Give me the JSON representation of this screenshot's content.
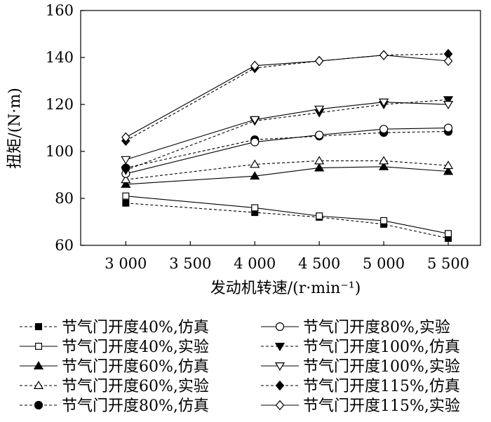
{
  "chart_data": {
    "type": "line",
    "title": "",
    "xlabel": "发动机转速/(r·min⁻¹)",
    "ylabel": "扭矩/(N·m)",
    "x": [
      3000,
      4000,
      4500,
      5000,
      5500
    ],
    "x_tick_labels": [
      "3 000",
      "3 500",
      "4 000",
      "4 500",
      "5 000",
      "5 500"
    ],
    "x_ticks": [
      3000,
      3500,
      4000,
      4500,
      5000,
      5500
    ],
    "y_ticks": [
      60,
      80,
      100,
      120,
      140,
      160
    ],
    "xlim": [
      2650,
      5750
    ],
    "ylim": [
      60,
      160
    ],
    "grid": false,
    "legend_position": "bottom",
    "series": [
      {
        "name": "节气门开度40%,仿真",
        "marker": "square-filled",
        "dashed": true,
        "values": [
          78,
          74,
          72,
          69,
          63
        ]
      },
      {
        "name": "节气门开度40%,实验",
        "marker": "square-open",
        "dashed": false,
        "values": [
          81,
          76,
          72.5,
          70.5,
          65
        ]
      },
      {
        "name": "节气门开度60%,仿真",
        "marker": "triangle-up-filled",
        "dashed": false,
        "values": [
          86,
          89.5,
          93,
          93.5,
          91.5
        ]
      },
      {
        "name": "节气门开度60%,实验",
        "marker": "triangle-up-open",
        "dashed": true,
        "values": [
          88,
          94.5,
          96,
          96,
          94
        ]
      },
      {
        "name": "节气门开度80%,仿真",
        "marker": "circle-filled",
        "dashed": true,
        "values": [
          93,
          105,
          106.5,
          108,
          108.5
        ]
      },
      {
        "name": "节气门开度80%,实验",
        "marker": "circle-open",
        "dashed": false,
        "values": [
          90.5,
          104,
          107,
          109.5,
          110
        ]
      },
      {
        "name": "节气门开度100%,仿真",
        "marker": "triangle-down-filled",
        "dashed": true,
        "values": [
          92,
          113,
          116.5,
          120,
          122
        ]
      },
      {
        "name": "节气门开度100%,实验",
        "marker": "triangle-down-open",
        "dashed": false,
        "values": [
          96.5,
          113.5,
          118,
          121,
          120
        ]
      },
      {
        "name": "节气门开度115%,仿真",
        "marker": "diamond-filled",
        "dashed": true,
        "values": [
          104.5,
          135.5,
          138.5,
          141,
          141.5
        ]
      },
      {
        "name": "节气门开度115%,实验",
        "marker": "diamond-open",
        "dashed": false,
        "values": [
          106,
          136.5,
          138.5,
          141,
          138.5
        ]
      }
    ]
  }
}
